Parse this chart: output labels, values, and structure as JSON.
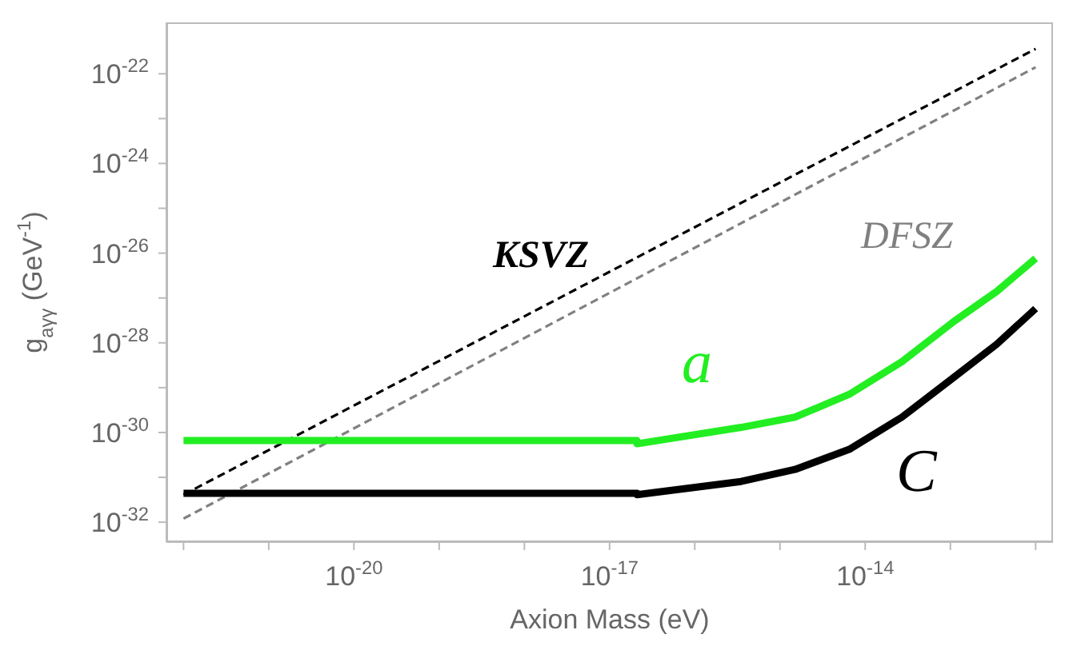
{
  "chart_data": {
    "type": "line",
    "xlabel": "Axion Mass (eV)",
    "ylabel": "g$_{aγγ}$ (GeV$^{-1}$)",
    "log": "xy",
    "marker": "none",
    "xlim": [
      6.3e-23,
      1.6e-12
    ],
    "ylim": [
      3.6e-33,
      1.4e-21
    ],
    "xticks": [
      {
        "value": 1e-22,
        "label": null
      },
      {
        "value": 1e-21,
        "label": null
      },
      {
        "value": 1e-20,
        "label": "10$^{-20}$"
      },
      {
        "value": 1e-19,
        "label": null
      },
      {
        "value": 1e-18,
        "label": null
      },
      {
        "value": 1e-17,
        "label": "10$^{-17}$"
      },
      {
        "value": 1e-16,
        "label": null
      },
      {
        "value": 1e-15,
        "label": null
      },
      {
        "value": 1e-14,
        "label": "10$^{-14}$"
      },
      {
        "value": 1e-13,
        "label": null
      },
      {
        "value": 1e-12,
        "label": null
      }
    ],
    "yticks": [
      {
        "value": 1e-32,
        "label": "10$^{-32}$"
      },
      {
        "value": 1e-31,
        "label": null
      },
      {
        "value": 1e-30,
        "label": "10$^{-30}$"
      },
      {
        "value": 1e-29,
        "label": null
      },
      {
        "value": 1e-28,
        "label": "10$^{-28}$"
      },
      {
        "value": 1e-27,
        "label": null
      },
      {
        "value": 1e-26,
        "label": "10$^{-26}$"
      },
      {
        "value": 1e-25,
        "label": null
      },
      {
        "value": 1e-24,
        "label": "10$^{-24}$"
      },
      {
        "value": 1e-23,
        "label": null
      },
      {
        "value": 1e-22,
        "label": "10$^{-22}$"
      }
    ],
    "series": [
      {
        "name": "KSVZ",
        "color": "#000000",
        "line_style": "dashed",
        "x": [
          1e-22,
          1e-12
        ],
        "values": [
          4.1e-32,
          3.6e-22
        ]
      },
      {
        "name": "DFSZ",
        "color": "#808080",
        "line_style": "dashed",
        "x": [
          1e-22,
          1e-12
        ],
        "values": [
          1.2e-32,
          1.4e-22
        ]
      },
      {
        "name": "a",
        "color": "#22ee22",
        "line_style": "solid",
        "x": [
          1e-22,
          2.1e-17,
          2.1e-17,
          3.5e-16,
          1.5e-15,
          6.5e-15,
          2.7e-14,
          1.1e-13,
          3.5e-13,
          1e-12
        ],
        "values": [
          6.6e-31,
          6.6e-31,
          5.6e-31,
          1.3e-30,
          2.2e-30,
          7.1e-30,
          3.8e-29,
          3e-28,
          1.4e-27,
          7.6e-27
        ]
      },
      {
        "name": "C",
        "color": "#000000",
        "line_style": "solid",
        "x": [
          1e-22,
          2.1e-17,
          2.1e-17,
          3.5e-16,
          1.5e-15,
          6.5e-15,
          2.7e-14,
          1.1e-13,
          3.5e-13,
          1e-12
        ],
        "values": [
          4.4e-32,
          4.4e-32,
          4.1e-32,
          8.1e-32,
          1.5e-31,
          4.2e-31,
          2.2e-30,
          1.7e-29,
          9.3e-29,
          5.8e-28
        ]
      }
    ]
  }
}
